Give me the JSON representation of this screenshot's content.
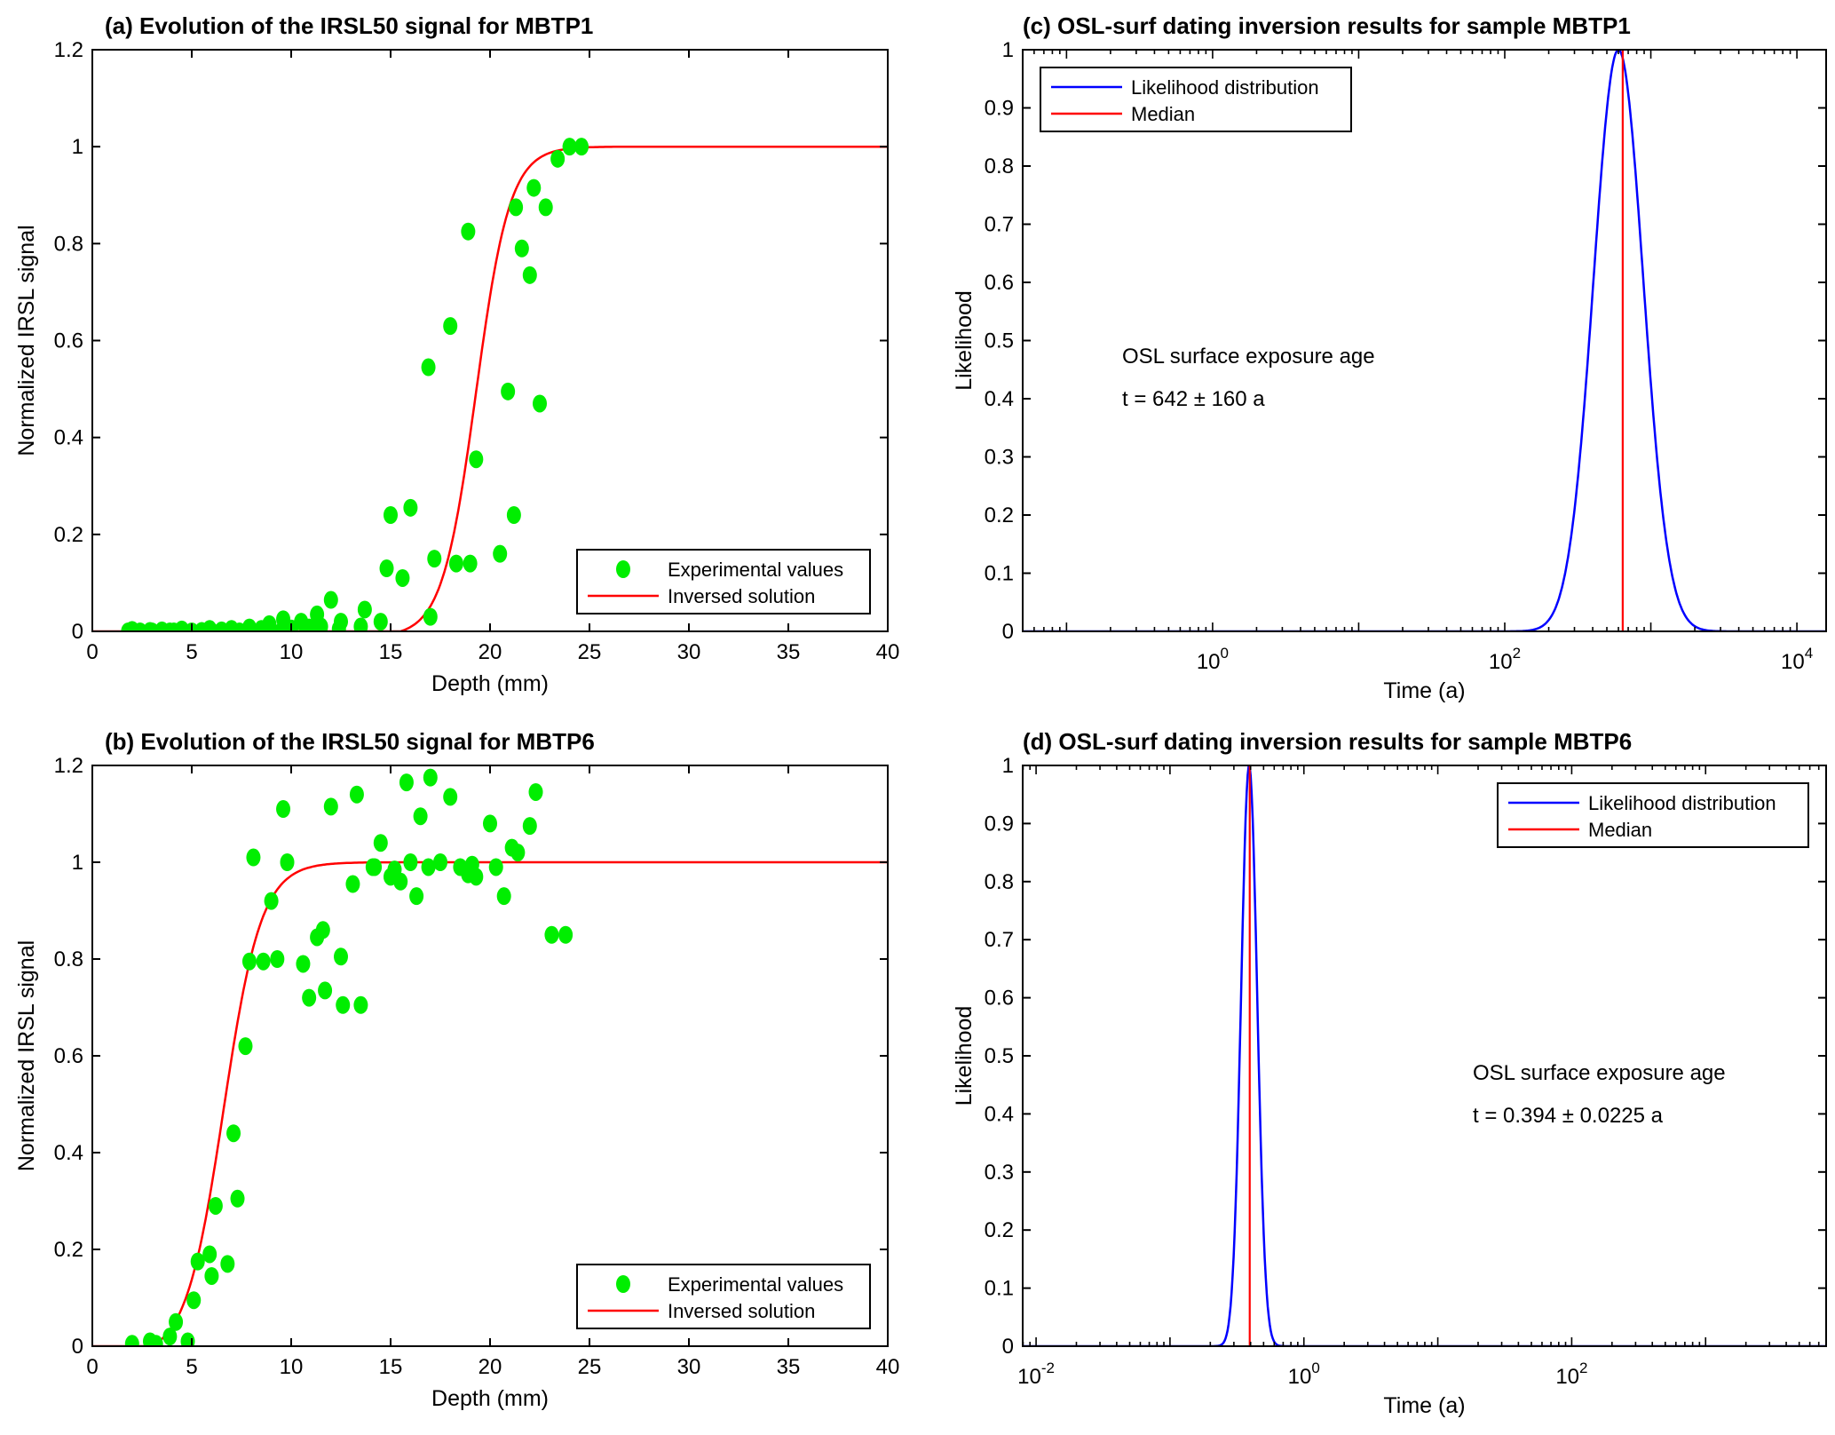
{
  "colors": {
    "points": "#00ee00",
    "fit": "#ff0000",
    "likelihood": "#0000ff",
    "median": "#ff0000",
    "axis": "#000000"
  },
  "chart_data": [
    {
      "id": "a",
      "type": "scatter",
      "title": "(a)  Evolution of the IRSL50 signal for MBTP1",
      "xlabel": "Depth (mm)",
      "ylabel": "Normalized IRSL signal",
      "xlim": [
        0,
        40
      ],
      "ylim": [
        0,
        1.2
      ],
      "xticks": [
        0,
        5,
        10,
        15,
        20,
        25,
        30,
        35,
        40
      ],
      "yticks": [
        0,
        0.2,
        0.4,
        0.6,
        0.8,
        1,
        1.2
      ],
      "ytick_labels": [
        "0",
        "0.2",
        "0.4",
        "0.6",
        "0.8",
        "1",
        "1.2"
      ],
      "legend": {
        "position": "bottom-right",
        "entries": [
          "Experimental values",
          "Inversed solution"
        ]
      },
      "series": [
        {
          "name": "Experimental values",
          "kind": "points",
          "x": [
            1.8,
            2.0,
            2.4,
            2.9,
            3.0,
            3.5,
            3.9,
            4.1,
            4.5,
            5.0,
            5.5,
            5.9,
            6.0,
            6.5,
            7.0,
            7.4,
            7.9,
            8.5,
            8.9,
            9.5,
            9.6,
            10.0,
            10.5,
            10.9,
            11.3,
            11.5,
            12.0,
            12.4,
            12.5,
            13.5,
            13.7,
            14.5,
            14.8,
            15.0,
            15.6,
            16.0,
            16.9,
            17.0,
            17.2,
            18.0,
            18.3,
            18.9,
            19.0,
            19.3,
            20.5,
            20.9,
            21.3,
            21.6,
            21.2,
            22.0,
            22.2,
            22.5,
            22.8,
            23.4,
            24.0,
            24.6
          ],
          "y": [
            0.0,
            0.003,
            0.0,
            0.001,
            0.0,
            0.002,
            0.0,
            0.0,
            0.004,
            0.0,
            0.001,
            0.005,
            0.0,
            0.002,
            0.005,
            0.0,
            0.008,
            0.005,
            0.015,
            0.0,
            0.025,
            0.006,
            0.02,
            0.008,
            0.035,
            0.01,
            0.065,
            0.005,
            0.02,
            0.01,
            0.045,
            0.02,
            0.13,
            0.24,
            0.11,
            0.255,
            0.545,
            0.03,
            0.15,
            0.63,
            0.14,
            0.825,
            0.14,
            0.355,
            0.16,
            0.495,
            0.875,
            0.79,
            0.24,
            0.735,
            0.915,
            0.47,
            0.875,
            0.975,
            1.0,
            1.0
          ]
        },
        {
          "name": "Inversed solution",
          "kind": "line",
          "model": "logistic",
          "midpoint": 19.3,
          "scale": 0.85,
          "plateau": 1.0,
          "onset": 15.5
        }
      ]
    },
    {
      "id": "b",
      "type": "scatter",
      "title": "(b)  Evolution of the IRSL50 signal for MBTP6",
      "xlabel": "Depth (mm)",
      "ylabel": "Normalized IRSL signal",
      "xlim": [
        0,
        40
      ],
      "ylim": [
        0,
        1.2
      ],
      "xticks": [
        0,
        5,
        10,
        15,
        20,
        25,
        30,
        35,
        40
      ],
      "yticks": [
        0,
        0.2,
        0.4,
        0.6,
        0.8,
        1,
        1.2
      ],
      "ytick_labels": [
        "0",
        "0.2",
        "0.4",
        "0.6",
        "0.8",
        "1",
        "1.2"
      ],
      "legend": {
        "position": "bottom-right",
        "entries": [
          "Experimental values",
          "Inversed solution"
        ]
      },
      "series": [
        {
          "name": "Experimental values",
          "kind": "points",
          "x": [
            2.0,
            2.9,
            3.2,
            3.9,
            4.2,
            4.8,
            5.1,
            5.3,
            5.9,
            6.0,
            6.2,
            6.8,
            7.1,
            7.3,
            7.7,
            7.9,
            8.1,
            8.6,
            9.0,
            9.3,
            9.6,
            9.8,
            10.6,
            10.9,
            11.3,
            11.6,
            11.7,
            12.0,
            12.5,
            12.6,
            13.1,
            13.3,
            13.5,
            14.1,
            14.2,
            14.5,
            15.0,
            15.2,
            15.5,
            15.8,
            16.0,
            16.3,
            16.5,
            16.9,
            17.0,
            17.5,
            18.0,
            18.5,
            18.9,
            19.1,
            19.3,
            20.0,
            20.3,
            20.7,
            21.1,
            21.4,
            22.0,
            22.3,
            23.1,
            23.8
          ],
          "y": [
            0.005,
            0.01,
            0.005,
            0.02,
            0.05,
            0.01,
            0.095,
            0.175,
            0.19,
            0.145,
            0.29,
            0.17,
            0.44,
            0.305,
            0.62,
            0.795,
            1.01,
            0.795,
            0.92,
            0.8,
            1.11,
            1.0,
            0.79,
            0.72,
            0.845,
            0.86,
            0.735,
            1.115,
            0.805,
            0.705,
            0.955,
            1.14,
            0.705,
            0.99,
            0.99,
            1.04,
            0.97,
            0.985,
            0.96,
            1.165,
            1.0,
            0.93,
            1.095,
            0.99,
            1.175,
            1.0,
            1.135,
            0.99,
            0.975,
            0.995,
            0.97,
            1.08,
            0.99,
            0.93,
            1.03,
            1.02,
            1.075,
            1.145,
            0.85,
            0.85
          ]
        },
        {
          "name": "Inversed solution",
          "kind": "line",
          "model": "logistic",
          "midpoint": 6.6,
          "scale": 0.95,
          "plateau": 1.0,
          "onset": 3.0
        }
      ]
    },
    {
      "id": "c",
      "type": "line",
      "title": "(c)  OSL-surf dating inversion results for sample MBTP1",
      "xlabel": "Time (a)",
      "ylabel": "Likelihood",
      "xscale": "log",
      "xlim_log10": [
        -1.3,
        4.2
      ],
      "ylim": [
        0,
        1
      ],
      "xticks_log10": [
        0,
        2,
        4
      ],
      "xtick_labels": [
        {
          "base": "10",
          "exp": "0"
        },
        {
          "base": "10",
          "exp": "2"
        },
        {
          "base": "10",
          "exp": "4"
        }
      ],
      "yticks": [
        0,
        0.1,
        0.2,
        0.3,
        0.4,
        0.5,
        0.6,
        0.7,
        0.8,
        0.9,
        1
      ],
      "ytick_labels": [
        "0",
        "0.1",
        "0.2",
        "0.3",
        "0.4",
        "0.5",
        "0.6",
        "0.7",
        "0.8",
        "0.9",
        "1"
      ],
      "legend": {
        "position": "top-left",
        "entries": [
          "Likelihood distribution",
          "Median"
        ]
      },
      "annotation": {
        "line1": "OSL surface exposure age",
        "line2": "t = 642 ± 160 a"
      },
      "series": [
        {
          "name": "Likelihood distribution",
          "kind": "lognormal-peak",
          "peak_time": 600,
          "sigma_log10": 0.17
        },
        {
          "name": "Median",
          "kind": "vline",
          "x": 642
        }
      ]
    },
    {
      "id": "d",
      "type": "line",
      "title": "(d)  OSL-surf dating inversion results for sample MBTP6",
      "xlabel": "Time (a)",
      "ylabel": "Likelihood",
      "xscale": "log",
      "xlim_log10": [
        -2.1,
        3.9
      ],
      "ylim": [
        0,
        1
      ],
      "xticks_log10": [
        -2,
        0,
        2
      ],
      "xtick_labels": [
        {
          "base": "10",
          "exp": "-2"
        },
        {
          "base": "10",
          "exp": "0"
        },
        {
          "base": "10",
          "exp": "2"
        }
      ],
      "yticks": [
        0,
        0.1,
        0.2,
        0.3,
        0.4,
        0.5,
        0.6,
        0.7,
        0.8,
        0.9,
        1
      ],
      "ytick_labels": [
        "0",
        "0.1",
        "0.2",
        "0.3",
        "0.4",
        "0.5",
        "0.6",
        "0.7",
        "0.8",
        "0.9",
        "1"
      ],
      "legend": {
        "position": "top-right",
        "entries": [
          "Likelihood distribution",
          "Median"
        ]
      },
      "annotation": {
        "line1": "OSL surface exposure age",
        "line2": "t = 0.394 ± 0.0225 a"
      },
      "series": [
        {
          "name": "Likelihood distribution",
          "kind": "lognormal-peak",
          "peak_time": 0.39,
          "sigma_log10": 0.06
        },
        {
          "name": "Median",
          "kind": "vline",
          "x": 0.394
        }
      ]
    }
  ]
}
